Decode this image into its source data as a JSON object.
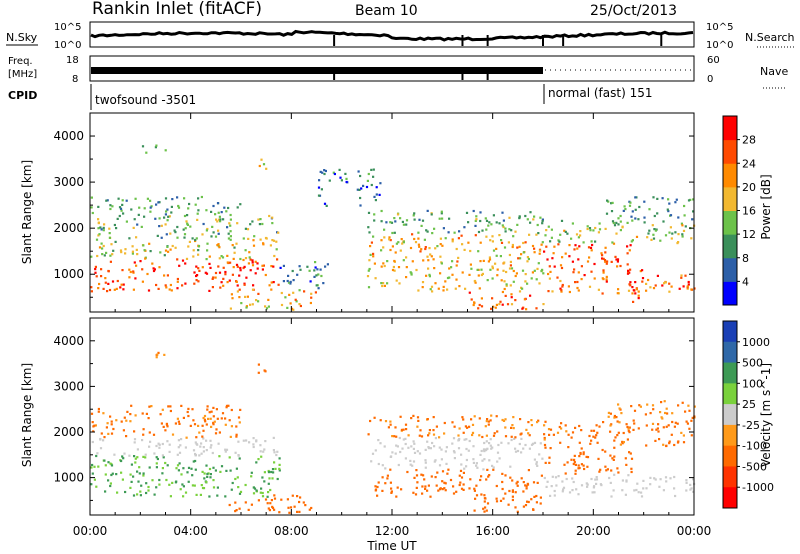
{
  "header": {
    "station": "Rankin Inlet (fitACF)",
    "beam": "Beam 10",
    "date": "25/Oct/2013"
  },
  "top_strips": {
    "nsky": {
      "label": "N.Sky",
      "tick_hi": "10^5",
      "tick_lo": "10^0"
    },
    "nsearch": {
      "label": "N.Search",
      "tick_hi": "10^5",
      "tick_lo": "10^0"
    },
    "freq": {
      "label_line1": "Freq.",
      "label_line2": "[MHz]",
      "tick_hi": "18",
      "tick_lo": "8"
    },
    "nave": {
      "label": "Nave",
      "tick_hi": "60",
      "tick_lo": "0"
    },
    "cpid": {
      "label": "CPID",
      "modes": [
        {
          "name": "twofsound -3501",
          "start_hour": 0,
          "end_hour": 18
        },
        {
          "name": "normal (fast) 151",
          "start_hour": 18,
          "end_hour": 24
        }
      ]
    }
  },
  "colors": {
    "power": [
      "#0000ff",
      "#2c5fa8",
      "#3a8f5a",
      "#6cc24a",
      "#f2b830",
      "#ff8a00",
      "#ff4a00",
      "#ff0000"
    ],
    "velocity": [
      "#1a3fb5",
      "#2f68a8",
      "#3d9a55",
      "#7ad13c",
      "#cccccc",
      "#ff9a1a",
      "#ff6a00",
      "#ff3300",
      "#ff0000"
    ],
    "ground_scatter": "#c8c8c8"
  },
  "chart_data": [
    {
      "type": "heatmap",
      "panel": "power",
      "xlabel": "",
      "ylabel": "Slant Range [km]",
      "x_unit": "hour UT",
      "xlim": [
        0,
        24
      ],
      "ylim": [
        180,
        4500
      ],
      "yticks": [
        1000,
        2000,
        3000,
        4000
      ],
      "colorbar": {
        "label": "Power [dB]",
        "ticks": [
          "28",
          "24",
          "20",
          "16",
          "12",
          "8",
          "4"
        ],
        "range": [
          0,
          32
        ]
      },
      "bands": [
        {
          "t0": 0.0,
          "t1": 7.5,
          "r0": 650,
          "r1": 1350,
          "value": 26
        },
        {
          "t0": 0.0,
          "t1": 7.5,
          "r0": 1350,
          "r1": 1800,
          "value": 17
        },
        {
          "t0": 0.0,
          "t1": 7.5,
          "r0": 1800,
          "r1": 2300,
          "value": 13
        },
        {
          "t0": 0.0,
          "t1": 6.0,
          "r0": 2300,
          "r1": 2700,
          "value": 10
        },
        {
          "t0": 5.5,
          "t1": 9.0,
          "r0": 250,
          "r1": 700,
          "value": 20
        },
        {
          "t0": 7.5,
          "t1": 9.5,
          "r0": 700,
          "r1": 1300,
          "value": 9
        },
        {
          "t0": 11.0,
          "t1": 18.0,
          "r0": 650,
          "r1": 1200,
          "value": 18
        },
        {
          "t0": 11.0,
          "t1": 18.0,
          "r0": 1200,
          "r1": 1900,
          "value": 20
        },
        {
          "t0": 11.0,
          "t1": 18.0,
          "r0": 1900,
          "r1": 2400,
          "value": 11
        },
        {
          "t0": 15.0,
          "t1": 18.0,
          "r0": 250,
          "r1": 650,
          "value": 25
        },
        {
          "t0": 18.0,
          "t1": 21.5,
          "r0": 1000,
          "r1": 1700,
          "value": 26
        },
        {
          "t0": 18.0,
          "t1": 24.0,
          "r0": 600,
          "r1": 1000,
          "value": 24
        },
        {
          "t0": 18.0,
          "t1": 24.0,
          "r0": 1700,
          "r1": 2200,
          "value": 15
        },
        {
          "t0": 20.5,
          "t1": 24.0,
          "r0": 2200,
          "r1": 2700,
          "value": 10
        },
        {
          "t0": 21.3,
          "t1": 22.0,
          "r0": 350,
          "r1": 1200,
          "value": 27
        },
        {
          "t0": 9.0,
          "t1": 11.5,
          "r0": 2500,
          "r1": 3300,
          "value": 7
        },
        {
          "t0": 2.0,
          "t1": 3.0,
          "r0": 3650,
          "r1": 3850,
          "value": 12
        },
        {
          "t0": 6.5,
          "t1": 7.0,
          "r0": 3300,
          "r1": 3600,
          "value": 19
        }
      ]
    },
    {
      "type": "heatmap",
      "panel": "velocity",
      "xlabel": "Time UT",
      "ylabel": "Slant Range [km]",
      "x_unit": "hour UT",
      "xlim": [
        0,
        24
      ],
      "xticks": [
        "00:00",
        "04:00",
        "08:00",
        "12:00",
        "16:00",
        "20:00",
        "00:00"
      ],
      "ylim": [
        180,
        4500
      ],
      "yticks": [
        1000,
        2000,
        3000,
        4000
      ],
      "colorbar": {
        "label": "Velocity [m s^-1]",
        "ticks": [
          "1000",
          "500",
          "100",
          "25",
          "-25",
          "-100",
          "-500",
          "-1000"
        ],
        "range": [
          -1000,
          1000
        ]
      },
      "bands": [
        {
          "t0": 0.0,
          "t1": 7.5,
          "r0": 600,
          "r1": 1500,
          "value": 110
        },
        {
          "t0": 0.0,
          "t1": 7.5,
          "r0": 1500,
          "r1": 1900,
          "value": 0
        },
        {
          "t0": 0.0,
          "t1": 6.0,
          "r0": 1900,
          "r1": 2600,
          "value": -150
        },
        {
          "t0": 5.5,
          "t1": 9.0,
          "r0": 250,
          "r1": 650,
          "value": -200
        },
        {
          "t0": 11.0,
          "t1": 18.0,
          "r0": 600,
          "r1": 1200,
          "value": -300
        },
        {
          "t0": 11.0,
          "t1": 18.0,
          "r0": 1200,
          "r1": 1900,
          "value": 0
        },
        {
          "t0": 11.0,
          "t1": 18.0,
          "r0": 1900,
          "r1": 2400,
          "value": -120
        },
        {
          "t0": 15.0,
          "t1": 18.0,
          "r0": 250,
          "r1": 600,
          "value": -250
        },
        {
          "t0": 18.0,
          "t1": 21.5,
          "r0": 1100,
          "r1": 1700,
          "value": -300
        },
        {
          "t0": 18.0,
          "t1": 24.0,
          "r0": 600,
          "r1": 1100,
          "value": 0
        },
        {
          "t0": 18.0,
          "t1": 24.0,
          "r0": 1700,
          "r1": 2300,
          "value": -150
        },
        {
          "t0": 20.5,
          "t1": 24.0,
          "r0": 2300,
          "r1": 2700,
          "value": -110
        },
        {
          "t0": 2.0,
          "t1": 3.0,
          "r0": 3650,
          "r1": 3850,
          "value": -120
        },
        {
          "t0": 6.5,
          "t1": 7.0,
          "r0": 3300,
          "r1": 3600,
          "value": -200
        }
      ]
    }
  ]
}
